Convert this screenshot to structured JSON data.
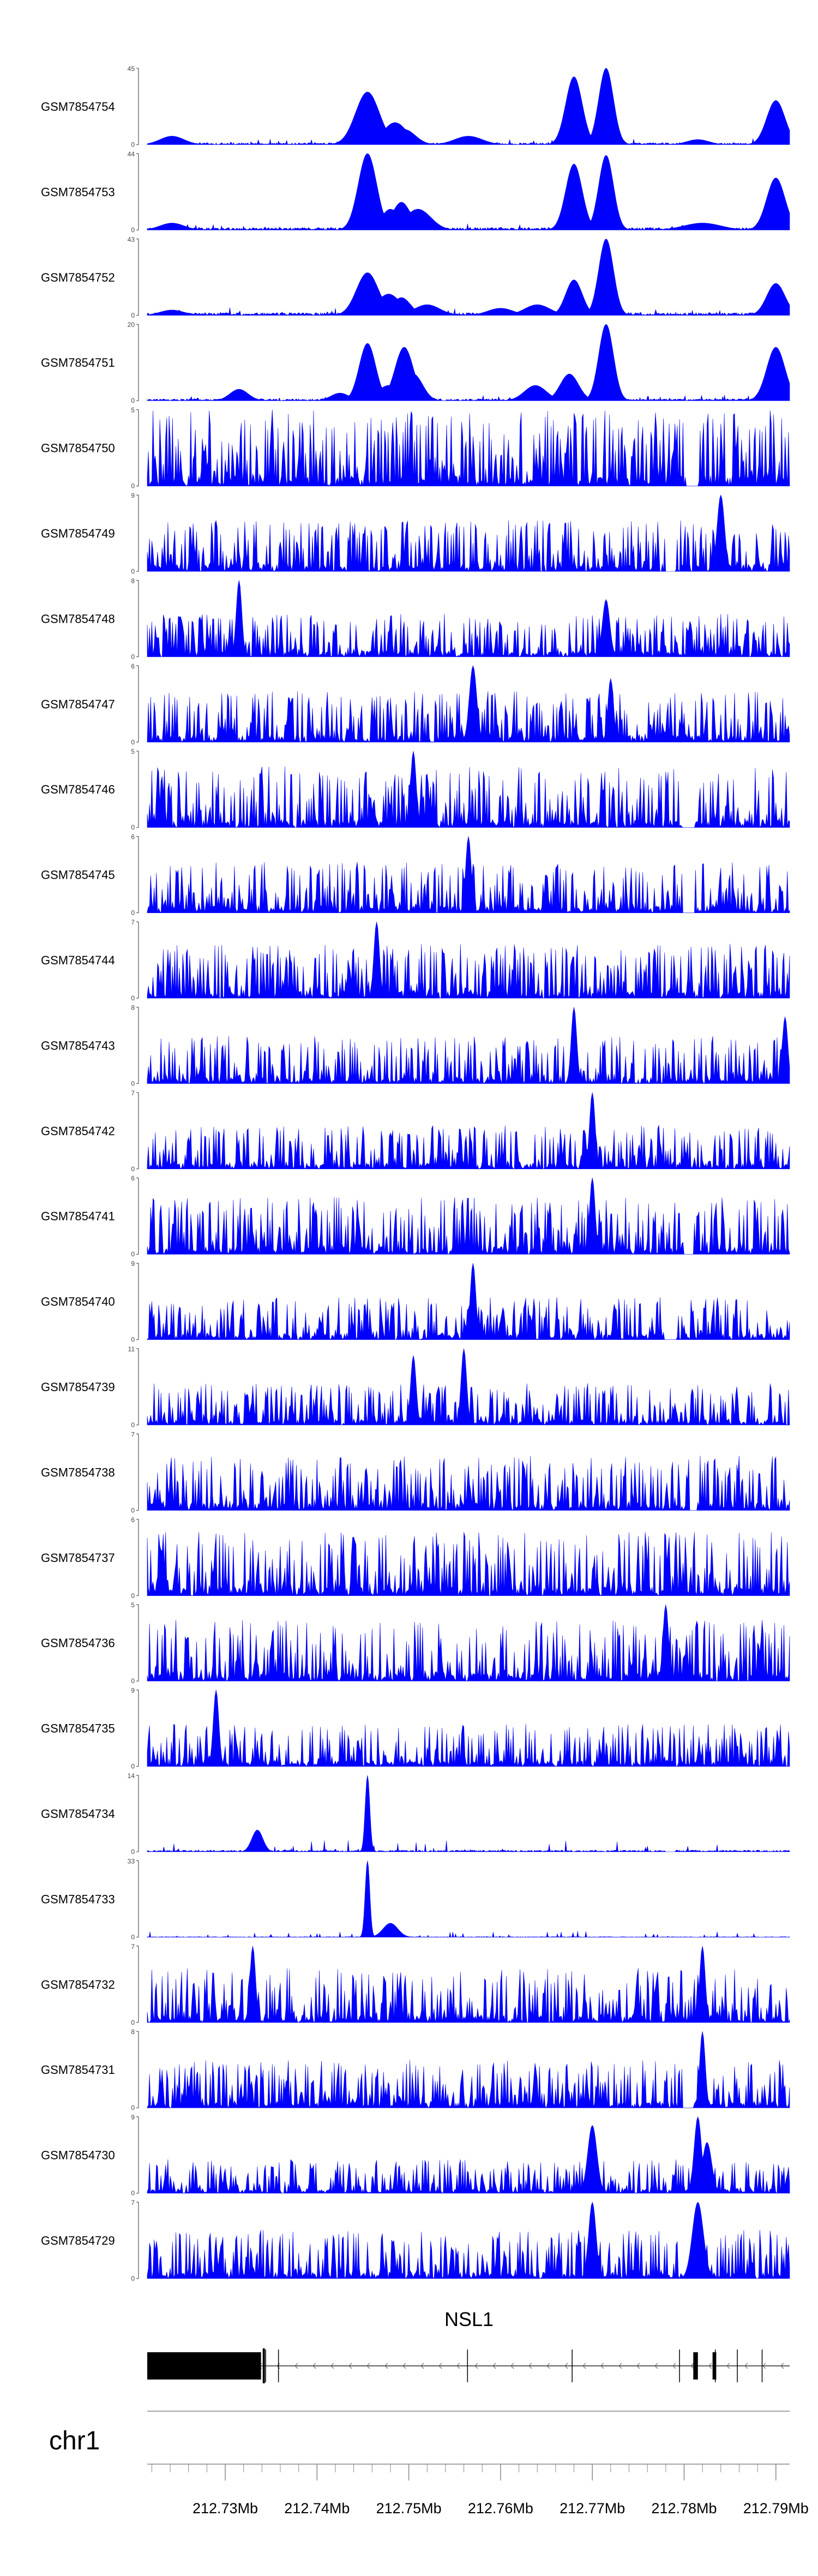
{
  "chart_data": {
    "type": "area",
    "title": "",
    "xlabel": "",
    "ylabel": "",
    "chromosome": "chr1",
    "gene": {
      "name": "NSL1",
      "strand": "-"
    },
    "x_unit": "Mb",
    "x_ticks": [
      "212.73Mb",
      "212.74Mb",
      "212.75Mb",
      "212.76Mb",
      "212.77Mb",
      "212.78Mb",
      "212.79Mb"
    ],
    "x_tick_values": [
      212.73,
      212.74,
      212.75,
      212.76,
      212.77,
      212.78,
      212.79
    ],
    "xlim": [
      212.7215,
      212.7915
    ],
    "track_color": "#0000ff",
    "gene_color": "#000000",
    "exons": [
      [
        212.7215,
        212.7339
      ],
      [
        212.781,
        212.7815
      ],
      [
        212.7831,
        212.7835
      ]
    ],
    "intron_marks": [
      212.7344,
      212.7358,
      212.7564,
      212.7678,
      212.7795,
      212.7834,
      212.7858,
      212.7885
    ],
    "series": [
      {
        "name": "GSM7854754",
        "ymax": "45",
        "baseline": 1.2,
        "noise": 2.5,
        "peaks": [
          [
            212.7242,
            1.3,
            5
          ],
          [
            212.7455,
            1.3,
            31
          ],
          [
            212.7475,
            1.0,
            8
          ],
          [
            212.7485,
            1.3,
            13
          ],
          [
            212.7495,
            1.2,
            9
          ],
          [
            212.768,
            0.9,
            40
          ],
          [
            212.7715,
            0.8,
            45
          ],
          [
            212.79,
            1.0,
            26
          ],
          [
            212.7565,
            1.5,
            5
          ],
          [
            212.7815,
            1.2,
            3
          ]
        ]
      },
      {
        "name": "GSM7854753",
        "ymax": "44",
        "baseline": 1.5,
        "noise": 3.0,
        "peaks": [
          [
            212.7242,
            1.3,
            4
          ],
          [
            212.7455,
            1.0,
            44
          ],
          [
            212.748,
            1.0,
            12
          ],
          [
            212.7492,
            1.0,
            16
          ],
          [
            212.751,
            1.4,
            12
          ],
          [
            212.768,
            0.9,
            38
          ],
          [
            212.7715,
            0.8,
            43
          ],
          [
            212.79,
            1.0,
            30
          ],
          [
            212.782,
            2.0,
            4
          ]
        ]
      },
      {
        "name": "GSM7854752",
        "ymax": "43",
        "baseline": 1.6,
        "noise": 3.0,
        "peaks": [
          [
            212.7242,
            1.3,
            3
          ],
          [
            212.7455,
            1.2,
            24
          ],
          [
            212.7478,
            1.3,
            12
          ],
          [
            212.7492,
            1.0,
            10
          ],
          [
            212.752,
            1.4,
            6
          ],
          [
            212.768,
            0.9,
            20
          ],
          [
            212.7715,
            0.8,
            43
          ],
          [
            212.79,
            1.0,
            18
          ],
          [
            212.764,
            1.4,
            6
          ],
          [
            212.76,
            1.4,
            4
          ]
        ]
      },
      {
        "name": "GSM7854751",
        "ymax": "20",
        "baseline": 0.5,
        "noise": 1.2,
        "peaks": [
          [
            212.7455,
            0.9,
            15
          ],
          [
            212.7478,
            1.2,
            4
          ],
          [
            212.7495,
            1.0,
            14
          ],
          [
            212.7505,
            1.0,
            7
          ],
          [
            212.7675,
            1.0,
            7
          ],
          [
            212.7715,
            0.8,
            20
          ],
          [
            212.79,
            1.0,
            14
          ],
          [
            212.7638,
            1.2,
            4
          ],
          [
            212.7315,
            1.0,
            3
          ],
          [
            212.7425,
            1.0,
            2
          ]
        ]
      },
      {
        "name": "GSM7854750",
        "ymax": "5",
        "baseline": 0,
        "noise": 5,
        "gaps": [
          [
            212.7802,
            212.7816
          ]
        ],
        "peaks": []
      },
      {
        "name": "GSM7854749",
        "ymax": "9",
        "baseline": 0,
        "noise": 6,
        "gaps": [
          [
            212.778,
            212.779
          ]
        ],
        "peaks": [
          [
            212.784,
            0.4,
            9
          ]
        ]
      },
      {
        "name": "GSM7854748",
        "ymax": "8",
        "baseline": 0,
        "noise": 4.5,
        "gaps": [],
        "peaks": [
          [
            212.7315,
            0.3,
            8
          ],
          [
            212.7715,
            0.4,
            6
          ]
        ]
      },
      {
        "name": "GSM7854747",
        "ymax": "6",
        "baseline": 0,
        "noise": 4,
        "gaps": [],
        "peaks": [
          [
            212.757,
            0.4,
            6
          ],
          [
            212.772,
            0.3,
            5
          ]
        ]
      },
      {
        "name": "GSM7854746",
        "ymax": "5",
        "baseline": 0,
        "noise": 4,
        "gaps": [
          [
            212.7798,
            212.7812
          ]
        ],
        "peaks": [
          [
            212.7505,
            0.3,
            5
          ]
        ]
      },
      {
        "name": "GSM7854745",
        "ymax": "6",
        "baseline": 0,
        "noise": 4,
        "gaps": [
          [
            212.7798,
            212.7812
          ]
        ],
        "peaks": [
          [
            212.7565,
            0.3,
            6
          ]
        ]
      },
      {
        "name": "GSM7854744",
        "ymax": "7",
        "baseline": 0,
        "noise": 5,
        "gaps": [],
        "peaks": [
          [
            212.7465,
            0.3,
            7
          ]
        ]
      },
      {
        "name": "GSM7854743",
        "ymax": "8",
        "baseline": 0,
        "noise": 5,
        "gaps": [],
        "peaks": [
          [
            212.768,
            0.3,
            8
          ],
          [
            212.791,
            0.3,
            7
          ]
        ]
      },
      {
        "name": "GSM7854742",
        "ymax": "7",
        "baseline": 0,
        "noise": 4,
        "gaps": [],
        "peaks": [
          [
            212.77,
            0.3,
            7
          ]
        ]
      },
      {
        "name": "GSM7854741",
        "ymax": "6",
        "baseline": 0,
        "noise": 4.5,
        "gaps": [
          [
            212.78,
            212.781
          ]
        ],
        "peaks": [
          [
            212.77,
            0.3,
            6
          ]
        ]
      },
      {
        "name": "GSM7854740",
        "ymax": "9",
        "baseline": 0,
        "noise": 5,
        "gaps": [
          [
            212.7778,
            212.7792
          ]
        ],
        "peaks": [
          [
            212.757,
            0.3,
            9
          ]
        ]
      },
      {
        "name": "GSM7854739",
        "ymax": "11",
        "baseline": 0,
        "noise": 6,
        "gaps": [],
        "peaks": [
          [
            212.756,
            0.3,
            11
          ],
          [
            212.7505,
            0.3,
            10
          ]
        ]
      },
      {
        "name": "GSM7854738",
        "ymax": "7",
        "baseline": 0,
        "noise": 5,
        "gaps": [
          [
            212.7806,
            212.7815
          ]
        ],
        "peaks": []
      },
      {
        "name": "GSM7854737",
        "ymax": "6",
        "baseline": 0,
        "noise": 5,
        "gaps": [],
        "peaks": []
      },
      {
        "name": "GSM7854736",
        "ymax": "5",
        "baseline": 0,
        "noise": 4,
        "gaps": [],
        "peaks": [
          [
            212.778,
            0.3,
            5
          ]
        ]
      },
      {
        "name": "GSM7854735",
        "ymax": "9",
        "baseline": 0,
        "noise": 5,
        "gaps": [],
        "peaks": [
          [
            212.729,
            0.3,
            9
          ]
        ]
      },
      {
        "name": "GSM7854734",
        "ymax": "14",
        "baseline": 0.3,
        "noise": 2,
        "gaps": [
          [
            212.778,
            212.779
          ]
        ],
        "peaks": [
          [
            212.7455,
            0.25,
            14
          ],
          [
            212.7335,
            0.6,
            4
          ]
        ]
      },
      {
        "name": "GSM7854733",
        "ymax": "33",
        "baseline": 0.2,
        "noise": 2.5,
        "gaps": [],
        "peaks": [
          [
            212.7455,
            0.25,
            33
          ],
          [
            212.748,
            0.8,
            6
          ]
        ]
      },
      {
        "name": "GSM7854732",
        "ymax": "7",
        "baseline": 0,
        "noise": 5,
        "gaps": [],
        "peaks": [
          [
            212.733,
            0.3,
            7
          ],
          [
            212.782,
            0.3,
            7
          ]
        ]
      },
      {
        "name": "GSM7854731",
        "ymax": "8",
        "baseline": 0,
        "noise": 5,
        "gaps": [
          [
            212.78,
            212.781
          ]
        ],
        "peaks": [
          [
            212.782,
            0.3,
            8
          ]
        ]
      },
      {
        "name": "GSM7854730",
        "ymax": "9",
        "baseline": 0,
        "noise": 4,
        "gaps": [],
        "peaks": [
          [
            212.77,
            0.5,
            8
          ],
          [
            212.7815,
            0.4,
            9
          ],
          [
            212.7825,
            0.5,
            6
          ]
        ]
      },
      {
        "name": "GSM7854729",
        "ymax": "7",
        "baseline": 0,
        "noise": 4.5,
        "gaps": [
          [
            212.78,
            212.7808
          ]
        ],
        "peaks": [
          [
            212.7815,
            0.6,
            7
          ],
          [
            212.77,
            0.4,
            7
          ]
        ]
      }
    ]
  }
}
